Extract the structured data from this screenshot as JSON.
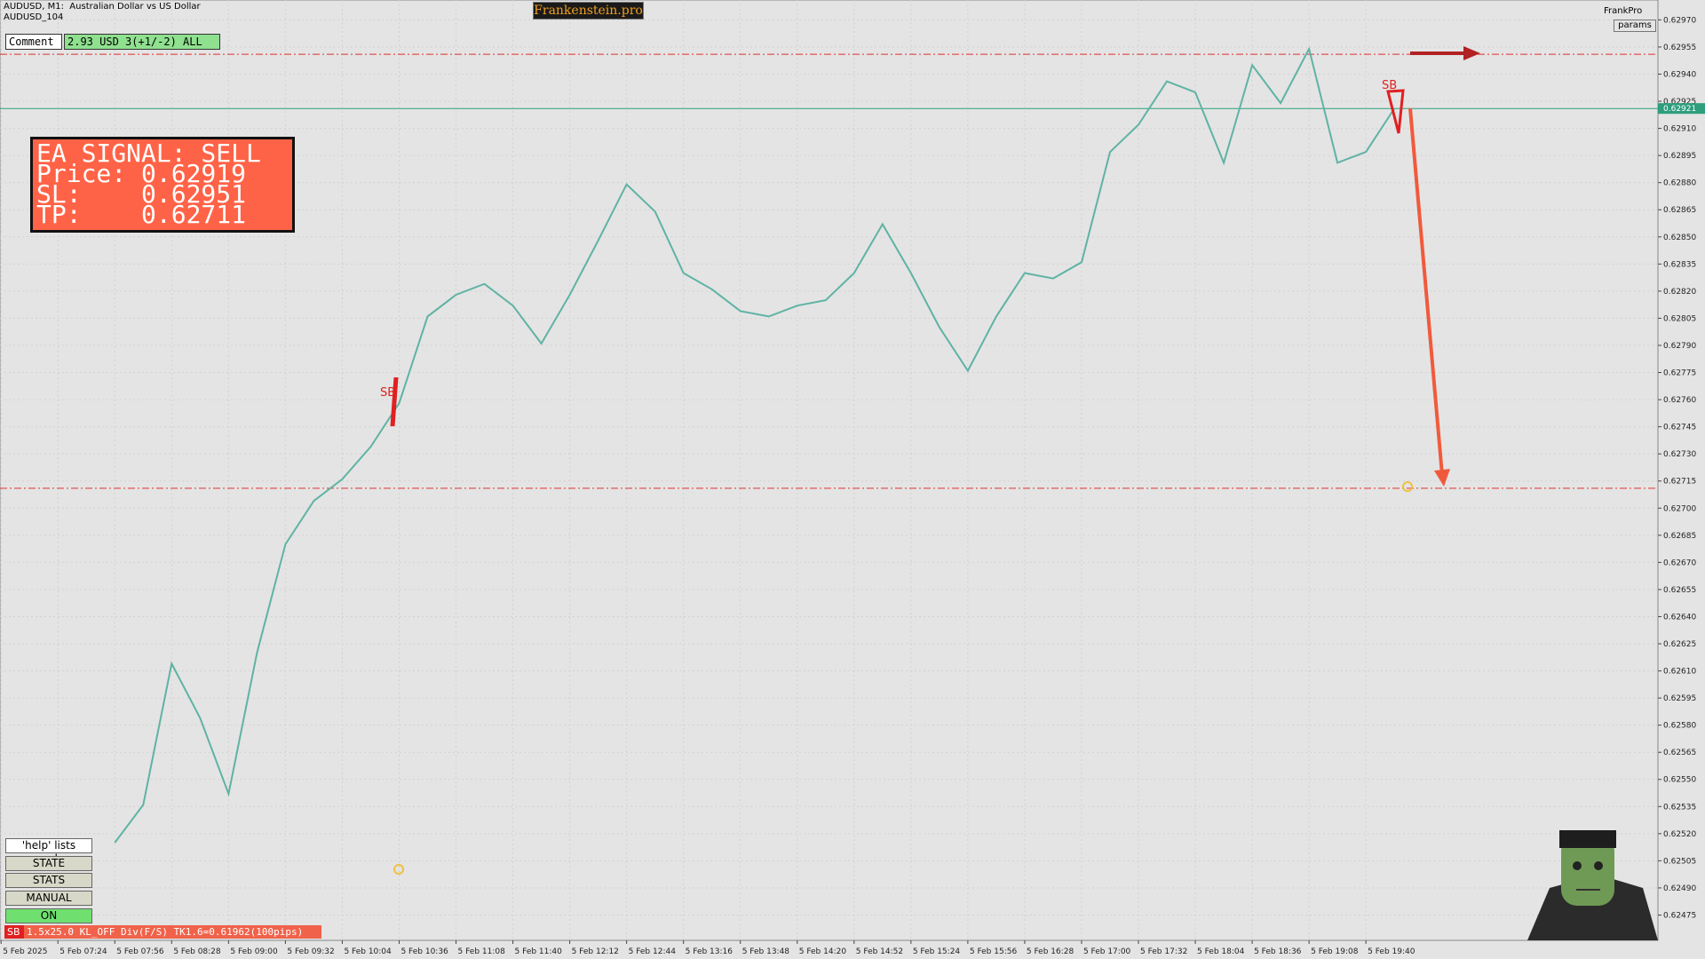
{
  "header": {
    "symbol": "AUDUSD, M1:  Australian Dollar vs US Dollar",
    "subtitle": "AUDUSD_104",
    "brand": "Frankenstein.pro",
    "account": "FrankPro",
    "params": "params"
  },
  "comment": {
    "label": "Comment",
    "value": "2.93 USD 3(+1/-2) ALL"
  },
  "signal": {
    "title": "EA SIGNAL: SELL",
    "lines": [
      "Price: 0.62919",
      "SL:    0.62951",
      "TP:    0.62711"
    ]
  },
  "annotations": [
    "SB",
    "SB"
  ],
  "buttons": [
    "'help' lists cmds",
    "STATE",
    "STATS",
    "MANUAL",
    "ON"
  ],
  "status": {
    "tag": "SB",
    "text": "1.5x25.0 KL_OFF Div(F/S) TK1.6=0.61962(100pips)"
  },
  "chart_data": {
    "type": "line",
    "color": "#5fb3a3",
    "categories": [
      "5 Feb 2025",
      null,
      "5 Feb 07:24",
      null,
      "5 Feb 07:56",
      null,
      "5 Feb 08:28",
      null,
      "5 Feb 09:00",
      null,
      "5 Feb 09:32",
      null,
      "5 Feb 10:04",
      null,
      "5 Feb 10:36",
      null,
      "5 Feb 11:08",
      null,
      "5 Feb 11:40",
      null,
      "5 Feb 12:12",
      null,
      "5 Feb 12:44",
      null,
      "5 Feb 13:16",
      null,
      "5 Feb 13:48",
      null,
      "5 Feb 14:20",
      null,
      "5 Feb 14:52",
      null,
      "5 Feb 15:24",
      null,
      "5 Feb 15:56",
      null,
      "5 Feb 16:28",
      null,
      "5 Feb 17:00",
      null,
      "5 Feb 17:32",
      null,
      "5 Feb 18:04",
      null,
      "5 Feb 18:36",
      null,
      "5 Feb 19:08",
      null,
      "5 Feb 19:40",
      null
    ],
    "values": [
      null,
      null,
      null,
      null,
      0.62515,
      0.62536,
      0.62614,
      0.62584,
      0.62542,
      0.6262,
      0.6268,
      0.62704,
      0.62716,
      0.62734,
      0.62758,
      0.62806,
      0.62818,
      0.62824,
      0.62812,
      0.62791,
      0.62818,
      0.62848,
      0.62879,
      0.62864,
      0.6283,
      0.62821,
      0.62809,
      0.62806,
      0.62812,
      0.62815,
      0.6283,
      0.62857,
      0.6283,
      0.628,
      0.62776,
      0.62806,
      0.6283,
      0.62827,
      0.62836,
      0.62897,
      0.62912,
      0.62936,
      0.6293,
      0.62891,
      0.62945,
      0.62924,
      0.62954,
      0.62891,
      0.62897,
      0.62921
    ],
    "ylim": [
      0.62461,
      0.62981
    ],
    "yticks": [
      {
        "value": 0.62475,
        "label": "0.62475"
      },
      {
        "value": 0.6249,
        "label": "0.62490"
      },
      {
        "value": 0.62505,
        "label": "0.62505"
      },
      {
        "value": 0.6252,
        "label": "0.62520"
      },
      {
        "value": 0.62535,
        "label": "0.62535"
      },
      {
        "value": 0.6255,
        "label": "0.62550"
      },
      {
        "value": 0.62565,
        "label": "0.62565"
      },
      {
        "value": 0.6258,
        "label": "0.62580"
      },
      {
        "value": 0.62595,
        "label": "0.62595"
      },
      {
        "value": 0.6261,
        "label": "0.62610"
      },
      {
        "value": 0.62625,
        "label": "0.62625"
      },
      {
        "value": 0.6264,
        "label": "0.62640"
      },
      {
        "value": 0.62655,
        "label": "0.62655"
      },
      {
        "value": 0.6267,
        "label": "0.62670"
      },
      {
        "value": 0.62685,
        "label": "0.62685"
      },
      {
        "value": 0.627,
        "label": "0.62700"
      },
      {
        "value": 0.62715,
        "label": "0.62715"
      },
      {
        "value": 0.6273,
        "label": "0.62730"
      },
      {
        "value": 0.62745,
        "label": "0.62745"
      },
      {
        "value": 0.6276,
        "label": "0.62760"
      },
      {
        "value": 0.62775,
        "label": "0.62775"
      },
      {
        "value": 0.6279,
        "label": "0.62790"
      },
      {
        "value": 0.62805,
        "label": "0.62805"
      },
      {
        "value": 0.6282,
        "label": "0.62820"
      },
      {
        "value": 0.62835,
        "label": "0.62835"
      },
      {
        "value": 0.6285,
        "label": "0.62850"
      },
      {
        "value": 0.62865,
        "label": "0.62865"
      },
      {
        "value": 0.6288,
        "label": "0.62880"
      },
      {
        "value": 0.62895,
        "label": "0.62895"
      },
      {
        "value": 0.6291,
        "label": "0.62910"
      },
      {
        "value": 0.62925,
        "label": "0.62925"
      },
      {
        "value": 0.6294,
        "label": "0.62940"
      },
      {
        "value": 0.62955,
        "label": "0.62955"
      },
      {
        "value": 0.6297,
        "label": "0.62970"
      }
    ],
    "grid": true,
    "hlines": [
      0.62951,
      0.62711
    ],
    "hline_color": "#e03030",
    "last_price": {
      "value": 0.62921,
      "label": "0.62921"
    },
    "last_color": "#2e9e7c"
  }
}
